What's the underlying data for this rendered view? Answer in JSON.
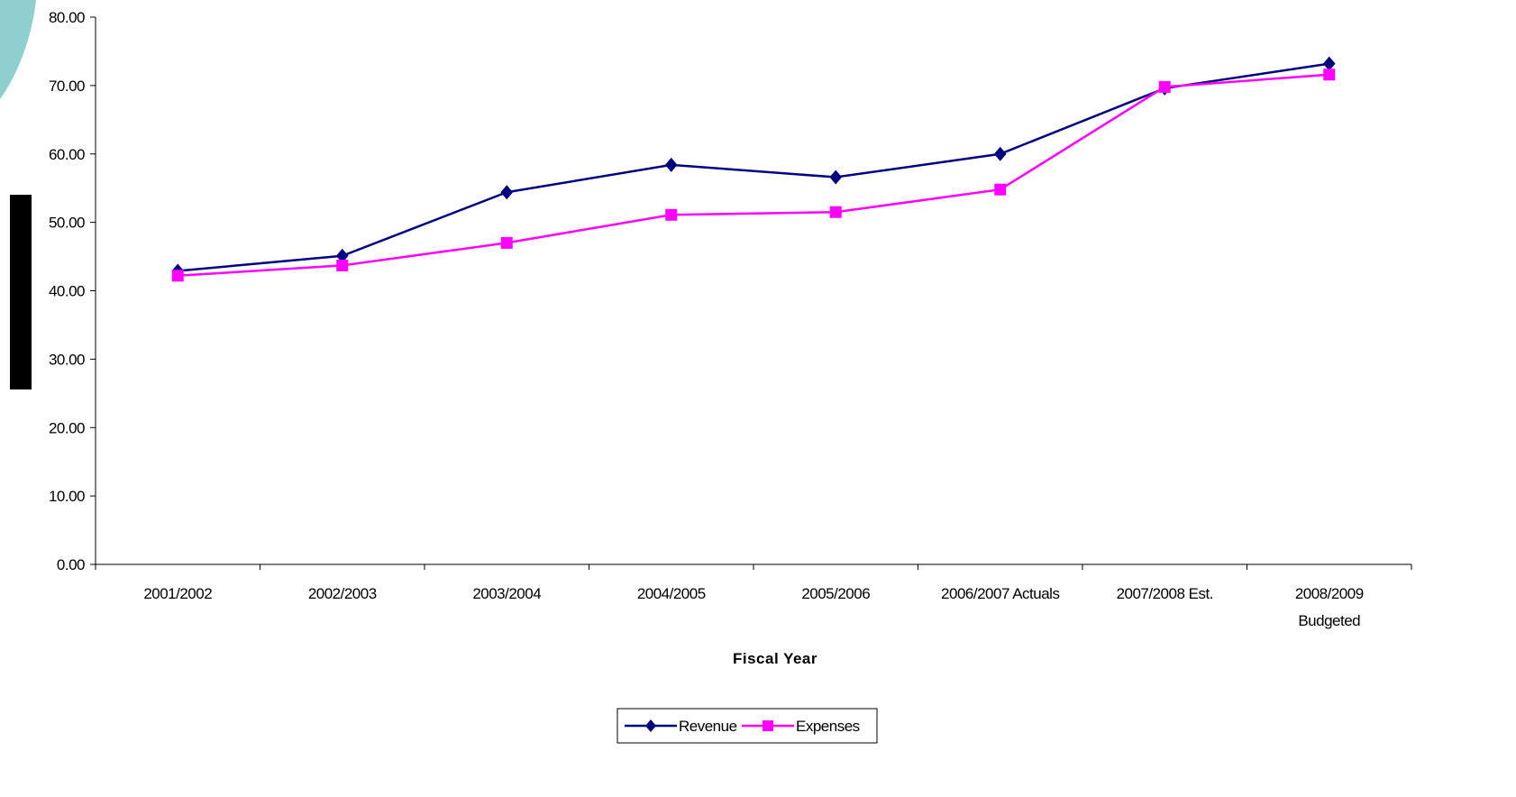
{
  "chart_data": {
    "type": "line",
    "title": "",
    "xlabel": "Fiscal Year",
    "ylabel": "",
    "ylim": [
      0,
      80
    ],
    "yticks": [
      "0.00",
      "10.00",
      "20.00",
      "30.00",
      "40.00",
      "50.00",
      "60.00",
      "70.00",
      "80.00"
    ],
    "categories": [
      [
        "2001/2002"
      ],
      [
        "2002/2003"
      ],
      [
        "2003/2004"
      ],
      [
        "2004/2005"
      ],
      [
        "2005/2006"
      ],
      [
        "2006/2007 Actuals"
      ],
      [
        "2007/2008 Est."
      ],
      [
        "2008/2009",
        "Budgeted"
      ]
    ],
    "series": [
      {
        "name": "Revenue",
        "color": "#000080",
        "marker": "diamond",
        "values": [
          42.9,
          45.1,
          54.4,
          58.4,
          56.6,
          60.0,
          69.6,
          73.2
        ]
      },
      {
        "name": "Expenses",
        "color": "#ff00ff",
        "marker": "square",
        "values": [
          42.2,
          43.7,
          47.0,
          51.1,
          51.5,
          54.8,
          69.8,
          71.6
        ]
      }
    ],
    "grid": false,
    "legend_position": "bottom"
  }
}
